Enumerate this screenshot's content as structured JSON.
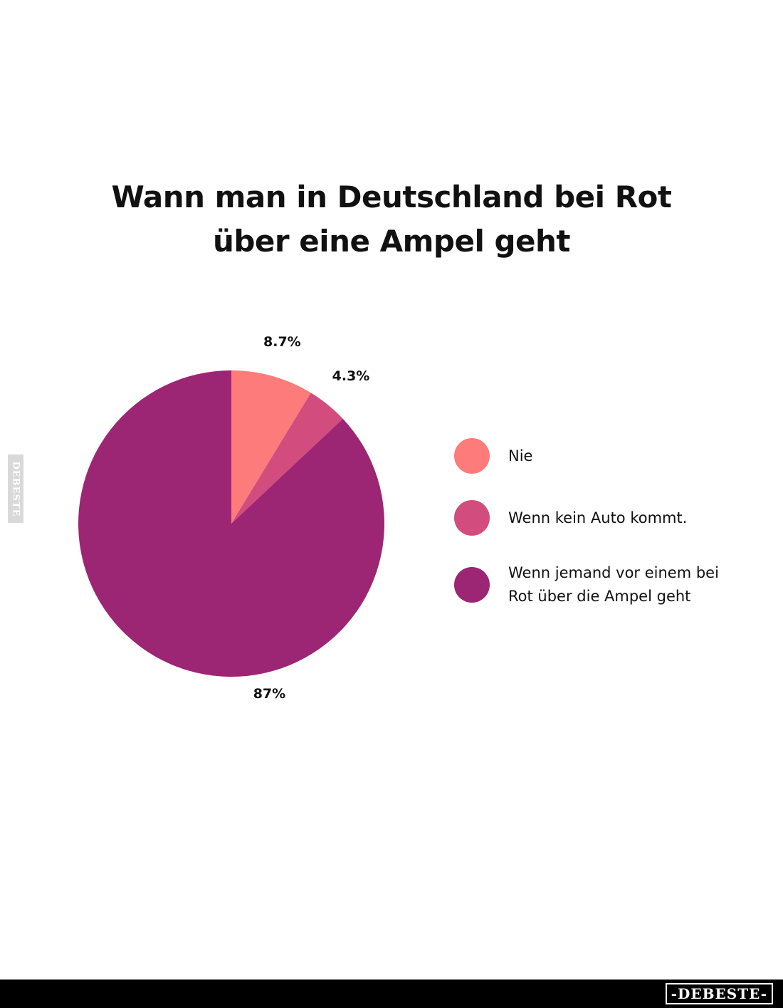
{
  "chart_data": {
    "type": "pie",
    "title_lines": [
      "Wann man in Deutschland bei Rot",
      "über eine Ampel geht"
    ],
    "slices": [
      {
        "label": "Nie",
        "value": 8.7,
        "value_label": "8.7%",
        "color": "#fd7b7a"
      },
      {
        "label": "Wenn kein Auto kommt.",
        "value": 4.3,
        "value_label": "4.3%",
        "color": "#d24c7d"
      },
      {
        "label": "Wenn jemand vor einem bei Rot über die Ampel geht",
        "value": 87,
        "value_label": "87%",
        "color": "#9c2674"
      }
    ],
    "start_angle": "12 o'clock",
    "direction": "clockwise",
    "legend_position": "right"
  },
  "watermark": {
    "side_text": "DEBESTE",
    "footer_logo": "-DEBESTE-",
    "background_color": "#ffffff",
    "footer_color": "#000000"
  }
}
